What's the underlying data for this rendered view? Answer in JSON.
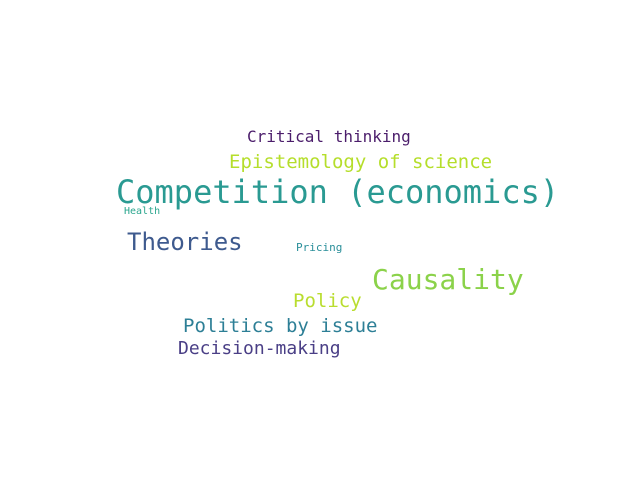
{
  "words": [
    {
      "text": "Critical thinking",
      "color": "#4b1d6b"
    },
    {
      "text": "Epistemology of science",
      "color": "#b5de2b"
    },
    {
      "text": "Competition (economics)",
      "color": "#2a9a92"
    },
    {
      "text": "Health",
      "color": "#2aa68e"
    },
    {
      "text": "Theories",
      "color": "#3e5a8e"
    },
    {
      "text": "Pricing",
      "color": "#2a8f9a"
    },
    {
      "text": "Causality",
      "color": "#8bd24a"
    },
    {
      "text": "Policy",
      "color": "#b9dd2f"
    },
    {
      "text": "Politics by issue",
      "color": "#2d7f96"
    },
    {
      "text": "Decision-making",
      "color": "#4a3f86"
    }
  ]
}
